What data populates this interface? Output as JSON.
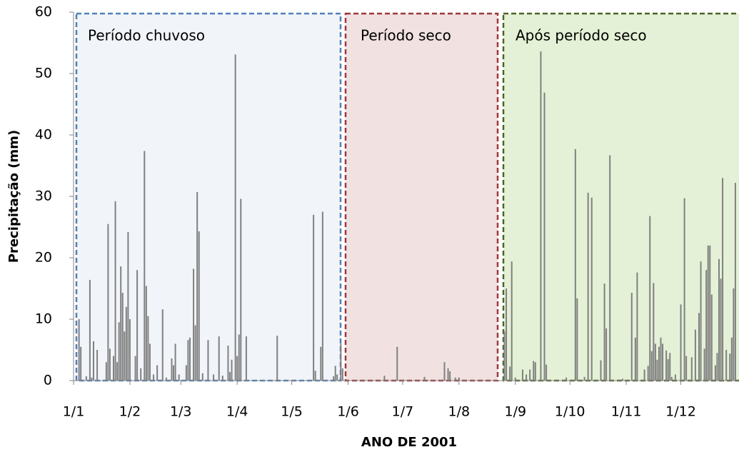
{
  "chart_data": {
    "type": "bar",
    "ylabel": "Precipitação (mm)",
    "xlabel": "ANO DE 2001",
    "annotations": [
      "Período chuvoso",
      "Período seco",
      "Após período seco"
    ],
    "color": "#808080",
    "x": [
      4,
      5,
      8,
      10,
      11,
      12,
      14,
      19,
      20,
      21,
      23,
      24,
      25,
      26,
      27,
      28,
      29,
      30,
      31,
      32,
      35,
      36,
      38,
      40,
      41,
      42,
      43,
      45,
      47,
      50,
      52,
      55,
      56,
      57,
      59,
      63,
      64,
      65,
      67,
      68,
      69,
      70,
      72,
      75,
      78,
      81,
      83,
      86,
      87,
      88,
      90,
      91,
      92,
      93,
      96,
      113,
      133,
      134,
      137,
      138,
      144,
      145,
      146,
      148,
      149,
      172,
      179,
      194,
      205,
      207,
      208,
      211,
      213,
      238,
      239,
      241,
      242,
      244,
      248,
      250,
      252,
      254,
      255,
      258,
      260,
      261,
      272,
      277,
      278,
      282,
      284,
      286,
      291,
      293,
      294,
      296,
      303,
      308,
      310,
      311,
      315,
      317,
      318,
      319,
      320,
      321,
      322,
      323,
      324,
      325,
      327,
      328,
      329,
      330,
      332,
      335,
      337,
      338,
      341,
      343,
      345,
      346,
      348,
      349,
      350,
      351,
      352,
      354,
      355,
      356,
      357,
      358,
      360,
      362,
      363,
      364,
      365
    ],
    "values": [
      10,
      5.5,
      0.7,
      16.4,
      0.5,
      6.4,
      5,
      3,
      25.5,
      5.2,
      4,
      29.2,
      3,
      9.5,
      18.6,
      14.3,
      8,
      12,
      24.2,
      10,
      4,
      18,
      2,
      37.4,
      15.4,
      10.5,
      6,
      1,
      2.5,
      11.6,
      0.5,
      3.6,
      2.5,
      6,
      1,
      2.5,
      6.6,
      7,
      18.2,
      9,
      30.7,
      24.3,
      1.2,
      6.6,
      1,
      7.2,
      0.8,
      5.7,
      1.4,
      3.4,
      53.1,
      4,
      7.5,
      29.6,
      7.2,
      7.3,
      27,
      1.6,
      5.5,
      27.5,
      0.7,
      2.4,
      1,
      6,
      2,
      0.8,
      5.5,
      0.6,
      3,
      2,
      1.5,
      0.5,
      0.5,
      8,
      15,
      2.3,
      19.4,
      0.5,
      1.8,
      1,
      1.8,
      3.2,
      3,
      53.6,
      46.9,
      2.6,
      0.5,
      37.7,
      13.4,
      0.6,
      30.6,
      29.8,
      3.3,
      15.8,
      8.5,
      36.7,
      0.3,
      14.3,
      7,
      17.6,
      1.8,
      2.4,
      26.8,
      4.8,
      15.9,
      6,
      3.4,
      5.5,
      7,
      6,
      4.9,
      3.5,
      4.5,
      0.6,
      1,
      12.4,
      29.7,
      4,
      3.8,
      8.3,
      11,
      19.4,
      5.2,
      18,
      22,
      22,
      14,
      2.5,
      4.5,
      19.8,
      16.6,
      33,
      5,
      4.4,
      7,
      15,
      32.2
    ],
    "xlim": [
      1,
      367
    ],
    "xticks": [
      {
        "value": 1,
        "label": "1/1"
      },
      {
        "value": 32,
        "label": "1/2"
      },
      {
        "value": 60,
        "label": "1/3"
      },
      {
        "value": 91,
        "label": "1/4"
      },
      {
        "value": 121,
        "label": "1/5"
      },
      {
        "value": 152,
        "label": "1/6"
      },
      {
        "value": 182,
        "label": "1/7"
      },
      {
        "value": 213,
        "label": "1/8"
      },
      {
        "value": 244,
        "label": "1/9"
      },
      {
        "value": 274,
        "label": "1/10"
      },
      {
        "value": 305,
        "label": "1/11"
      },
      {
        "value": 335,
        "label": "1/12"
      }
    ],
    "ylim": [
      0,
      60
    ],
    "yticks": [
      0,
      10,
      20,
      30,
      40,
      50,
      60
    ]
  }
}
